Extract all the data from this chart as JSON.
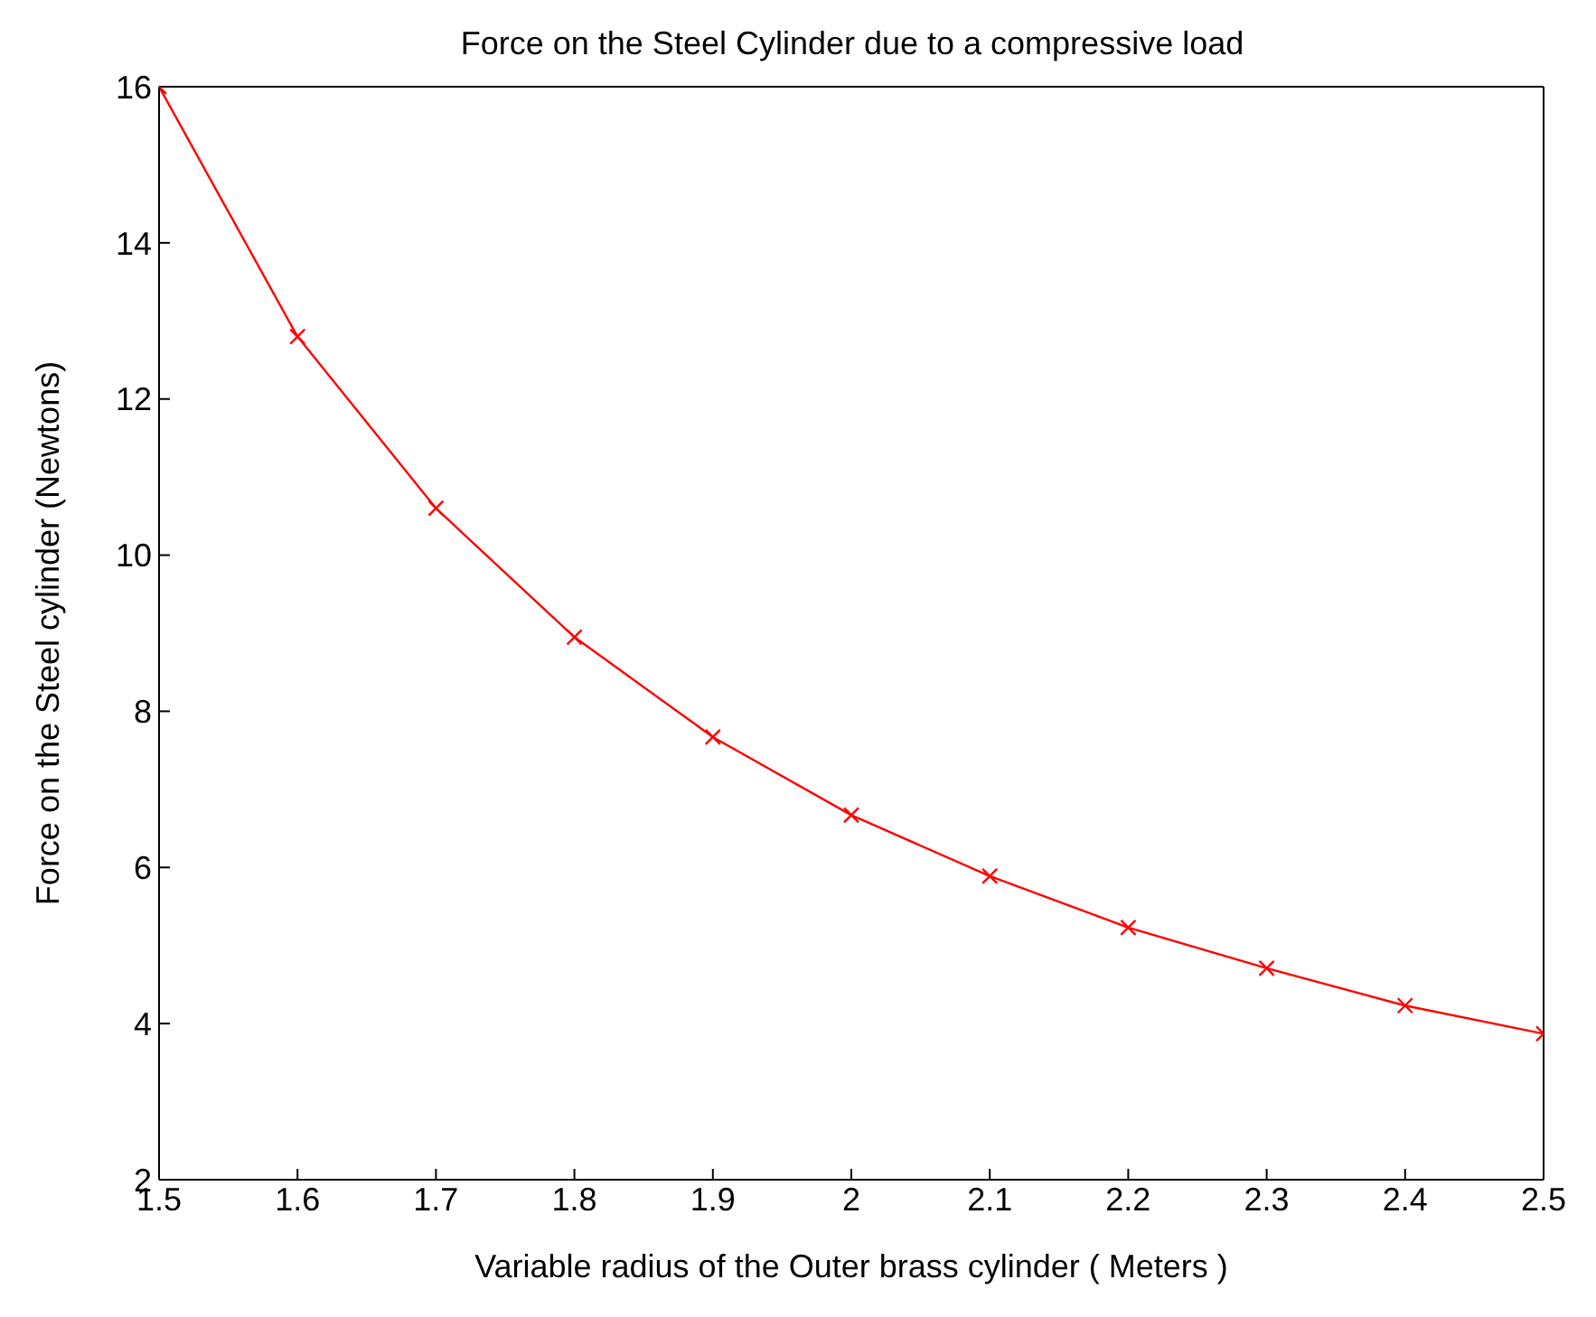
{
  "chart_data": {
    "type": "line",
    "title": "Force on the Steel Cylinder due to a compressive load",
    "xlabel": "Variable radius of the Outer brass cylinder ( Meters )",
    "ylabel": "Force on the Steel cylinder (Newtons)",
    "x": [
      1.5,
      1.6,
      1.7,
      1.8,
      1.9,
      2.0,
      2.1,
      2.2,
      2.3,
      2.4,
      2.5
    ],
    "series": [
      {
        "color": "#ff0000",
        "values": [
          16.0,
          12.8,
          10.6,
          8.95,
          7.67,
          6.67,
          5.89,
          5.23,
          4.71,
          4.23,
          3.87
        ]
      }
    ],
    "xlim": [
      1.5,
      2.5
    ],
    "xticks": [
      1.5,
      1.6,
      1.7,
      1.8,
      1.9,
      2,
      2.1,
      2.2,
      2.3,
      2.4,
      2.5
    ],
    "ylim": [
      2,
      16
    ],
    "yticks": [
      2,
      4,
      6,
      8,
      10,
      12,
      14,
      16
    ],
    "grid": false,
    "legend": false,
    "marker": "cross",
    "line_style": "solid"
  }
}
